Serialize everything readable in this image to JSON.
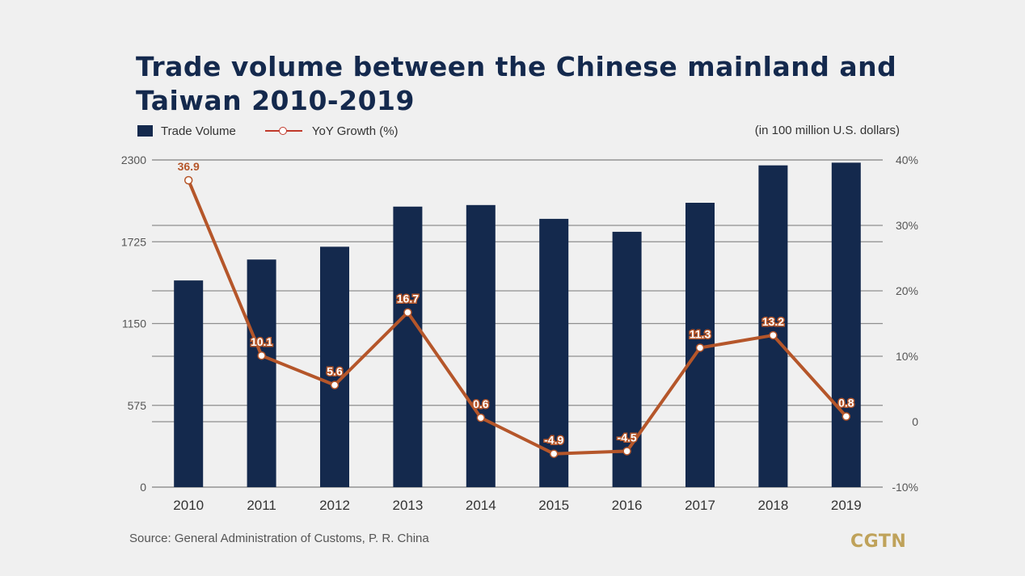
{
  "title": "Trade volume between the Chinese mainland and Taiwan 2010-2019",
  "unit_note": "(in 100 million U.S. dollars)",
  "source": "Source: General Administration of Customs, P. R. China",
  "logo": "CGTN",
  "colors": {
    "bar": "#14294d",
    "line": "#b5562a",
    "label": "#b5562a",
    "grid": "#8e8e8e",
    "legend_line": "#c0392b"
  },
  "chart_data": {
    "type": "bar",
    "categories": [
      "2010",
      "2011",
      "2012",
      "2013",
      "2014",
      "2015",
      "2016",
      "2017",
      "2018",
      "2019"
    ],
    "series": [
      {
        "name": "Trade Volume",
        "type": "bar",
        "axis": "left",
        "values": [
          1453,
          1600,
          1690,
          1972,
          1983,
          1886,
          1795,
          1999,
          2262,
          2281
        ]
      },
      {
        "name": "YoY Growth (%)",
        "type": "line",
        "axis": "right",
        "values": [
          36.9,
          10.1,
          5.6,
          16.7,
          0.6,
          -4.9,
          -4.5,
          11.3,
          13.2,
          0.8
        ],
        "labels": [
          "36.9",
          "10.1",
          "5.6",
          "16.7",
          "0.6",
          "-4.9",
          "-4.5",
          "11.3",
          "13.2",
          "0.8"
        ]
      }
    ],
    "y_left": {
      "ylim": [
        0,
        2300
      ],
      "ticks": [
        "0",
        "575",
        "1150",
        "1725",
        "2300"
      ]
    },
    "y_right": {
      "ylim": [
        -10,
        40
      ],
      "ticks": [
        "-10%",
        "0",
        "10%",
        "20%",
        "30%",
        "40%"
      ]
    },
    "grid": true,
    "legend_position": "top-left"
  }
}
